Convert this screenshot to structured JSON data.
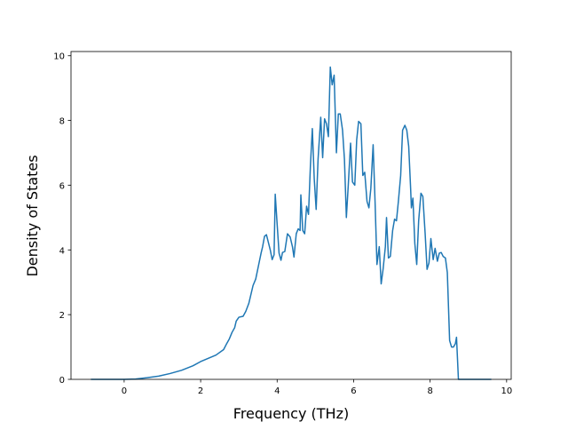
{
  "chart_data": {
    "type": "line",
    "xlabel": "Frequency (THz)",
    "ylabel": "Density of States",
    "color": "#1f77b4",
    "x": [
      -0.87,
      0,
      0.3,
      0.6,
      0.9,
      1.2,
      1.5,
      1.8,
      2.0,
      2.2,
      2.4,
      2.6,
      2.67,
      2.75,
      2.82,
      2.89,
      2.93,
      3.0,
      3.11,
      3.18,
      3.26,
      3.29,
      3.37,
      3.44,
      3.51,
      3.58,
      3.62,
      3.67,
      3.72,
      3.82,
      3.87,
      3.92,
      3.95,
      4.0,
      4.05,
      4.1,
      4.14,
      4.2,
      4.27,
      4.34,
      4.4,
      4.44,
      4.5,
      4.55,
      4.6,
      4.62,
      4.67,
      4.72,
      4.77,
      4.82,
      4.87,
      4.92,
      4.97,
      5.02,
      5.07,
      5.14,
      5.19,
      5.24,
      5.29,
      5.34,
      5.39,
      5.44,
      5.49,
      5.55,
      5.6,
      5.65,
      5.71,
      5.76,
      5.81,
      5.86,
      5.92,
      5.97,
      6.03,
      6.08,
      6.13,
      6.19,
      6.24,
      6.29,
      6.35,
      6.4,
      6.45,
      6.51,
      6.56,
      6.61,
      6.67,
      6.72,
      6.77,
      6.83,
      6.86,
      6.91,
      6.96,
      7.02,
      7.07,
      7.12,
      7.17,
      7.23,
      7.28,
      7.34,
      7.39,
      7.44,
      7.49,
      7.51,
      7.55,
      7.6,
      7.65,
      7.7,
      7.76,
      7.81,
      7.87,
      7.92,
      7.97,
      8.02,
      8.08,
      8.13,
      8.19,
      8.24,
      8.29,
      8.34,
      8.4,
      8.45,
      8.51,
      8.56,
      8.61,
      8.66,
      8.69,
      8.74,
      9.6
    ],
    "values": [
      0,
      0,
      0.01,
      0.05,
      0.1,
      0.18,
      0.28,
      0.42,
      0.55,
      0.65,
      0.75,
      0.92,
      1.08,
      1.25,
      1.45,
      1.6,
      1.8,
      1.92,
      1.95,
      2.1,
      2.35,
      2.5,
      2.9,
      3.1,
      3.5,
      3.9,
      4.1,
      4.42,
      4.47,
      4.0,
      3.7,
      3.85,
      5.72,
      4.8,
      3.9,
      3.68,
      3.92,
      3.95,
      4.5,
      4.4,
      4.1,
      3.78,
      4.5,
      4.65,
      4.6,
      5.7,
      4.6,
      4.5,
      5.35,
      5.1,
      6.6,
      7.75,
      6.2,
      5.25,
      6.8,
      8.1,
      6.85,
      8.05,
      7.9,
      7.5,
      9.65,
      9.1,
      9.4,
      7.0,
      8.2,
      8.2,
      7.7,
      6.8,
      5.0,
      6.0,
      7.3,
      6.1,
      6.0,
      7.4,
      7.97,
      7.9,
      6.3,
      6.4,
      5.5,
      5.3,
      5.9,
      7.25,
      5.5,
      3.55,
      4.1,
      2.95,
      3.4,
      4.1,
      5.0,
      3.75,
      3.8,
      4.6,
      4.95,
      4.9,
      5.5,
      6.3,
      7.7,
      7.85,
      7.7,
      7.2,
      5.9,
      5.3,
      5.6,
      4.2,
      3.55,
      4.9,
      5.75,
      5.65,
      4.5,
      3.4,
      3.6,
      4.35,
      3.7,
      4.05,
      3.65,
      3.9,
      3.92,
      3.8,
      3.75,
      3.3,
      1.2,
      1.0,
      1.0,
      1.1,
      1.3,
      0,
      0
    ],
    "xlim": [
      -1.39,
      10.12
    ],
    "xticks": [
      0,
      2,
      4,
      6,
      8,
      10
    ],
    "ylim": [
      0,
      10.13
    ],
    "yticks": [
      0,
      2,
      4,
      6,
      8,
      10
    ]
  }
}
